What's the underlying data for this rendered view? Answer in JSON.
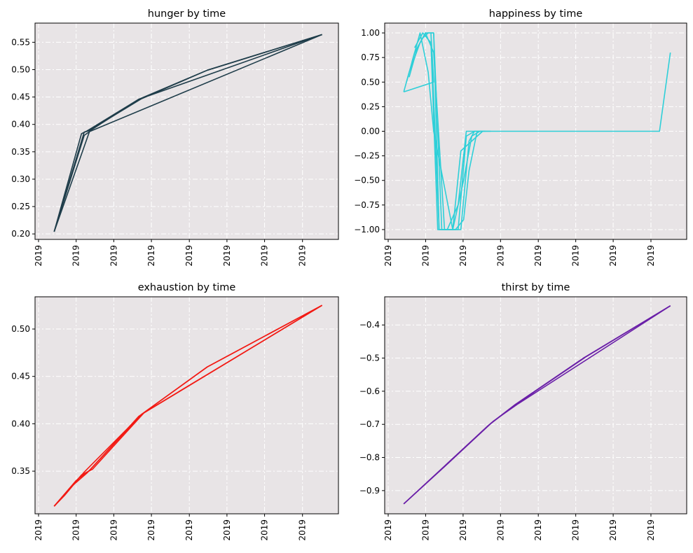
{
  "chart_data": [
    {
      "type": "line",
      "title": "hunger by time",
      "xlabel": "",
      "ylabel": "",
      "ylim": [
        0.19,
        0.585
      ],
      "xlim": [
        -0.03,
        1.08
      ],
      "x_tick_labels": [
        "2019",
        "2019",
        "2019",
        "2019",
        "2019",
        "2019",
        "2019",
        "2019"
      ],
      "y_ticks": [
        0.2,
        0.25,
        0.3,
        0.35,
        0.4,
        0.45,
        0.5,
        0.55
      ],
      "y_tick_labels": [
        "0.20",
        "0.25",
        "0.30",
        "0.35",
        "0.40",
        "0.45",
        "0.50",
        "0.55"
      ],
      "grid": true,
      "color": "#1f3d4a",
      "series": [
        {
          "x": [
            0.04,
            0.14,
            0.16,
            0.35,
            0.6,
            1.02
          ],
          "y": [
            0.204,
            0.383,
            0.388,
            0.446,
            0.499,
            0.564
          ]
        },
        {
          "x": [
            0.04,
            0.15,
            0.165,
            0.36,
            0.6,
            1.02
          ],
          "y": [
            0.204,
            0.386,
            0.388,
            0.447,
            0.499,
            0.564
          ]
        },
        {
          "x": [
            0.04,
            0.17,
            0.35,
            1.02
          ],
          "y": [
            0.204,
            0.388,
            0.446,
            0.564
          ]
        },
        {
          "x": [
            0.04,
            0.15,
            0.17,
            1.02
          ],
          "y": [
            0.204,
            0.38,
            0.387,
            0.564
          ]
        }
      ]
    },
    {
      "type": "line",
      "title": "happiness by time",
      "xlabel": "",
      "ylabel": "",
      "ylim": [
        -1.1,
        1.1
      ],
      "xlim": [
        -0.03,
        1.08
      ],
      "x_tick_labels": [
        "2019",
        "2019",
        "2019",
        "2019",
        "2019",
        "2019",
        "2019",
        "2019"
      ],
      "y_ticks": [
        -1.0,
        -0.75,
        -0.5,
        -0.25,
        0.0,
        0.25,
        0.5,
        0.75,
        1.0
      ],
      "y_tick_labels": [
        "−1.00",
        "−0.75",
        "−0.50",
        "−0.25",
        "0.00",
        "0.25",
        "0.50",
        "0.75",
        "1.00"
      ],
      "grid": true,
      "color": "#2ecfd8",
      "series": [
        {
          "x": [
            0.04,
            0.06,
            0.08,
            0.1,
            0.12,
            0.14,
            0.15,
            0.17,
            0.21,
            0.25,
            0.28,
            0.3,
            0.33,
            0.98,
            1.02
          ],
          "y": [
            0.4,
            0.6,
            0.75,
            0.9,
            1.0,
            1.0,
            1.0,
            -1.0,
            -1.0,
            -1.0,
            -0.1,
            0.0,
            0.0,
            0.0,
            0.8
          ]
        },
        {
          "x": [
            0.05,
            0.08,
            0.11,
            0.13,
            0.15,
            0.18,
            0.22,
            0.26,
            0.29,
            0.32,
            0.36
          ],
          "y": [
            0.5,
            0.8,
            0.95,
            1.0,
            1.0,
            -1.0,
            -1.0,
            -0.5,
            -0.05,
            0.0,
            0.0
          ]
        },
        {
          "x": [
            0.04,
            0.15,
            0.14,
            0.17,
            0.2,
            0.24,
            0.27,
            0.3
          ],
          "y": [
            0.4,
            0.5,
            1.0,
            -1.0,
            -1.0,
            -0.75,
            0.0,
            0.0
          ]
        },
        {
          "x": [
            0.06,
            0.09,
            0.12,
            0.15,
            0.19,
            0.23,
            0.26,
            0.28,
            0.31
          ],
          "y": [
            0.55,
            0.85,
            1.0,
            0.8,
            -1.0,
            -1.0,
            -0.9,
            -0.4,
            0.0
          ]
        },
        {
          "x": [
            0.07,
            0.1,
            0.13,
            0.15,
            0.22,
            0.25,
            0.29,
            0.33
          ],
          "y": [
            0.7,
            1.0,
            0.6,
            0.0,
            -1.0,
            -0.2,
            -0.1,
            0.0
          ]
        },
        {
          "x": [
            0.08,
            0.11,
            0.14,
            0.165,
            0.24,
            0.27,
            0.3,
            0.34
          ],
          "y": [
            0.85,
            1.0,
            0.9,
            -1.0,
            -1.0,
            -0.05,
            0.0,
            0.0
          ]
        }
      ]
    },
    {
      "type": "line",
      "title": "exhaustion by time",
      "xlabel": "",
      "ylabel": "",
      "ylim": [
        0.305,
        0.534
      ],
      "xlim": [
        -0.03,
        1.08
      ],
      "x_tick_labels": [
        "2019",
        "2019",
        "2019",
        "2019",
        "2019",
        "2019",
        "2019",
        "2019"
      ],
      "y_ticks": [
        0.35,
        0.4,
        0.45,
        0.5
      ],
      "y_tick_labels": [
        "0.35",
        "0.40",
        "0.45",
        "0.50"
      ],
      "grid": true,
      "color": "#f21a14",
      "series": [
        {
          "x": [
            0.04,
            0.12,
            0.17,
            0.35,
            0.6,
            1.02
          ],
          "y": [
            0.313,
            0.34,
            0.351,
            0.408,
            0.46,
            0.525
          ]
        },
        {
          "x": [
            0.04,
            0.1,
            0.16,
            0.36,
            0.6,
            1.02
          ],
          "y": [
            0.313,
            0.333,
            0.348,
            0.41,
            0.46,
            0.525
          ]
        },
        {
          "x": [
            0.04,
            0.14,
            0.18,
            0.37,
            1.02
          ],
          "y": [
            0.313,
            0.346,
            0.352,
            0.412,
            0.525
          ]
        },
        {
          "x": [
            0.04,
            0.08,
            0.15,
            0.36,
            1.02
          ],
          "y": [
            0.313,
            0.325,
            0.349,
            0.41,
            0.525
          ]
        }
      ]
    },
    {
      "type": "line",
      "title": "thirst by time",
      "xlabel": "",
      "ylabel": "",
      "ylim": [
        -0.97,
        -0.315
      ],
      "xlim": [
        -0.03,
        1.08
      ],
      "x_tick_labels": [
        "2019",
        "2019",
        "2019",
        "2019",
        "2019",
        "2019",
        "2019",
        "2019"
      ],
      "y_ticks": [
        -0.9,
        -0.8,
        -0.7,
        -0.6,
        -0.5,
        -0.4
      ],
      "y_tick_labels": [
        "−0.9",
        "−0.8",
        "−0.7",
        "−0.6",
        "−0.5",
        "−0.4"
      ],
      "grid": true,
      "color": "#6a1fa8",
      "series": [
        {
          "x": [
            0.04,
            0.2,
            0.36,
            0.45,
            0.7,
            1.02
          ],
          "y": [
            -0.94,
            -0.82,
            -0.697,
            -0.64,
            -0.5,
            -0.342
          ]
        },
        {
          "x": [
            0.04,
            0.21,
            0.37,
            0.46,
            1.02
          ],
          "y": [
            -0.94,
            -0.812,
            -0.69,
            -0.638,
            -0.342
          ]
        },
        {
          "x": [
            0.04,
            0.19,
            0.35,
            0.45,
            0.71,
            1.02
          ],
          "y": [
            -0.94,
            -0.826,
            -0.704,
            -0.641,
            -0.496,
            -0.342
          ]
        }
      ]
    }
  ]
}
